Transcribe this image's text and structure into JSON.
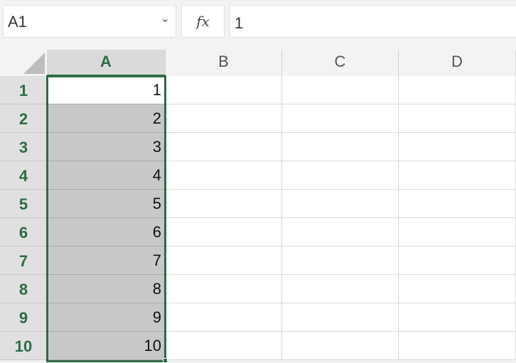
{
  "name_box": {
    "value": "A1"
  },
  "formula_bar": {
    "fx_label": "fx",
    "value": "1"
  },
  "columns": [
    "A",
    "B",
    "C",
    "D"
  ],
  "selected_column": "A",
  "rows": [
    {
      "label": "1",
      "A": "1"
    },
    {
      "label": "2",
      "A": "2"
    },
    {
      "label": "3",
      "A": "3"
    },
    {
      "label": "4",
      "A": "4"
    },
    {
      "label": "5",
      "A": "5"
    },
    {
      "label": "6",
      "A": "6"
    },
    {
      "label": "7",
      "A": "7"
    },
    {
      "label": "8",
      "A": "8"
    },
    {
      "label": "9",
      "A": "9"
    },
    {
      "label": "10",
      "A": "10"
    }
  ],
  "colors": {
    "accent": "#2e6b44",
    "selection_fill": "#c8c8c8"
  }
}
